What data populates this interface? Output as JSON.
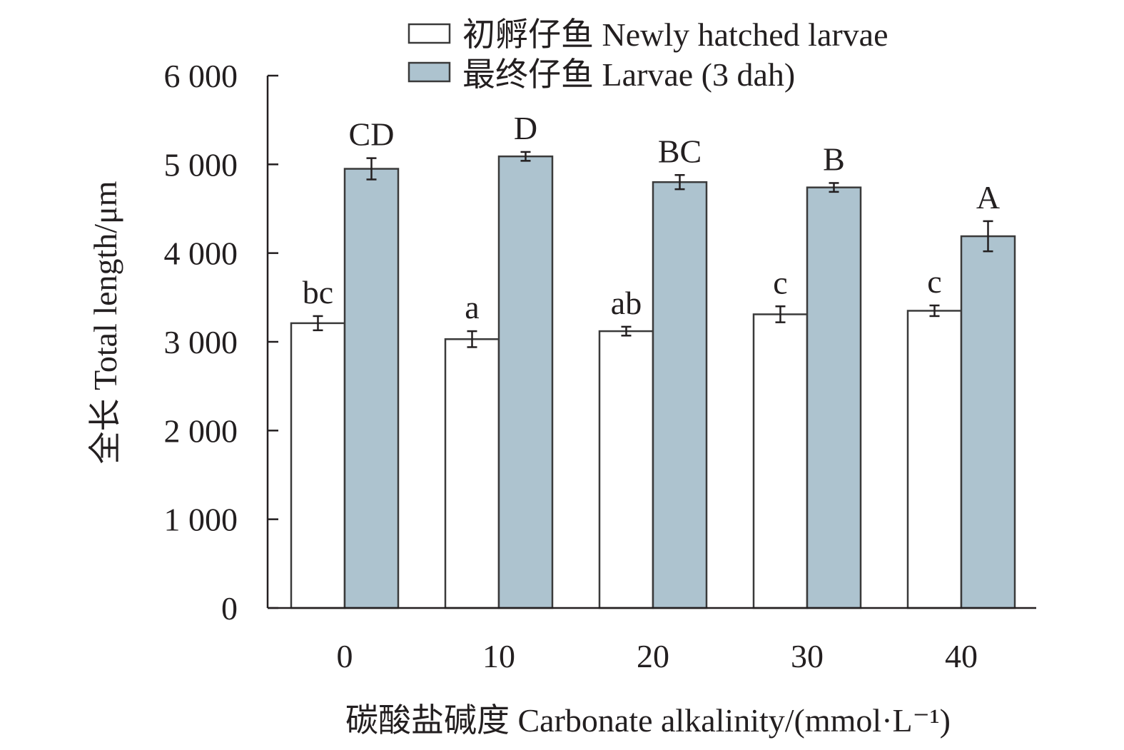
{
  "chart_data": {
    "type": "bar",
    "categories": [
      "0",
      "10",
      "20",
      "30",
      "40"
    ],
    "series": [
      {
        "name": "初孵仔鱼 Newly hatched larvae",
        "values": [
          3210,
          3030,
          3120,
          3310,
          3350
        ],
        "errors": [
          80,
          90,
          50,
          90,
          60
        ],
        "sig_labels": [
          "bc",
          "a",
          "ab",
          "c",
          "c"
        ],
        "color": "#ffffff"
      },
      {
        "name": "最终仔鱼 Larvae (3 dah)",
        "values": [
          4950,
          5090,
          4800,
          4740,
          4190
        ],
        "errors": [
          120,
          50,
          80,
          50,
          170
        ],
        "sig_labels": [
          "CD",
          "D",
          "BC",
          "B",
          "A"
        ],
        "color": "#adc3cf"
      }
    ],
    "yticks": [
      "0",
      "1 000",
      "2 000",
      "3 000",
      "4 000",
      "5 000",
      "6 000"
    ],
    "ylim": [
      0,
      6000
    ],
    "xlabel": "碳酸盐碱度 Carbonate alkalinity/(mmol·L⁻¹)",
    "ylabel": "全长 Total length/μm",
    "legend_position": "top-right",
    "grid": false
  }
}
